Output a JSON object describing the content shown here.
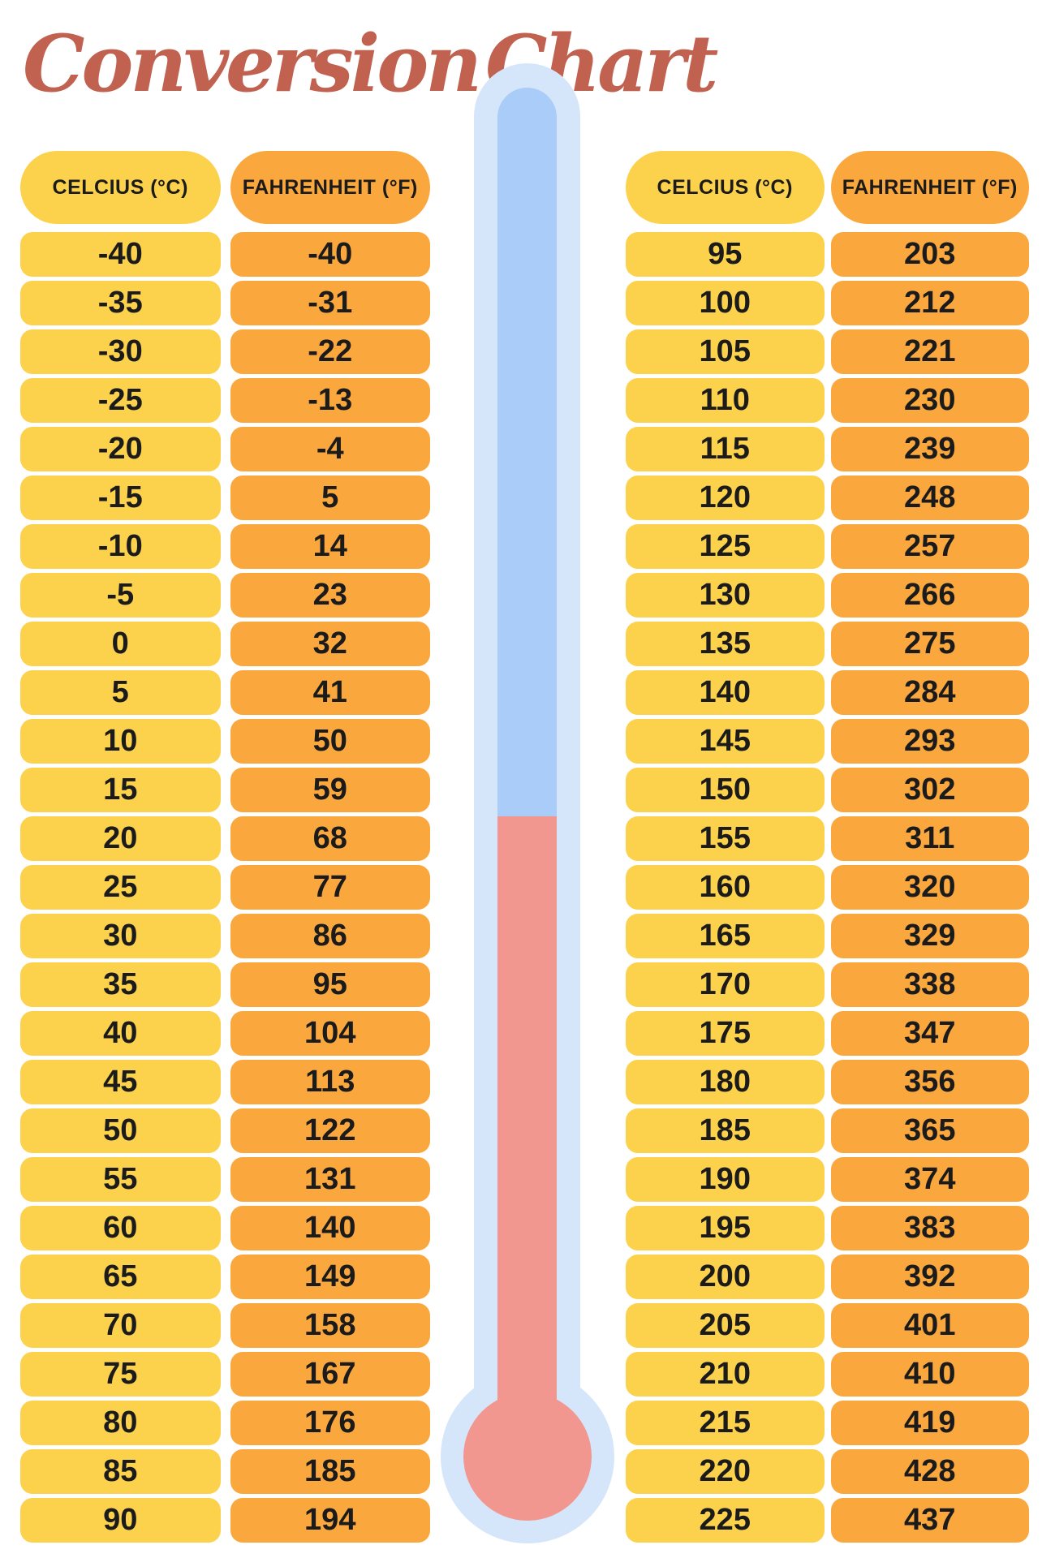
{
  "title": {
    "word1": "Conversion",
    "word2": "Chart"
  },
  "headers": {
    "celsius": "CELCIUS (°C)",
    "fahrenheit": "FAHRENHEIT (°F)"
  },
  "chart_data": {
    "type": "table",
    "title": "Conversion Chart",
    "columns": [
      "CELCIUS (°C)",
      "FAHRENHEIT (°F)"
    ],
    "tables": [
      {
        "position": "left",
        "celsius": [
          -40,
          -35,
          -30,
          -25,
          -20,
          -15,
          -10,
          -5,
          0,
          5,
          10,
          15,
          20,
          25,
          30,
          35,
          40,
          45,
          50,
          55,
          60,
          65,
          70,
          75,
          80,
          85,
          90
        ],
        "fahrenheit": [
          -40,
          -31,
          -22,
          -13,
          -4,
          5,
          14,
          23,
          32,
          41,
          50,
          59,
          68,
          77,
          86,
          95,
          104,
          113,
          122,
          131,
          140,
          149,
          158,
          167,
          176,
          185,
          194
        ]
      },
      {
        "position": "right",
        "celsius": [
          95,
          100,
          105,
          110,
          115,
          120,
          125,
          130,
          135,
          140,
          145,
          150,
          155,
          160,
          165,
          170,
          175,
          180,
          185,
          190,
          195,
          200,
          205,
          210,
          215,
          220,
          225
        ],
        "fahrenheit": [
          203,
          212,
          221,
          230,
          239,
          248,
          257,
          266,
          275,
          284,
          293,
          302,
          311,
          320,
          329,
          338,
          347,
          356,
          365,
          374,
          383,
          392,
          401,
          410,
          419,
          428,
          437
        ]
      }
    ]
  },
  "colors": {
    "cell_yellow": "#FCD24C",
    "cell_orange": "#FAA73D",
    "tube_light_blue": "#D6E6FA",
    "tube_blue": "#A9CDF8",
    "mercury_red": "#F2978F",
    "title_red": "#C1614F",
    "text_dark": "#1B1B1B",
    "background": "#FFFFFF"
  }
}
